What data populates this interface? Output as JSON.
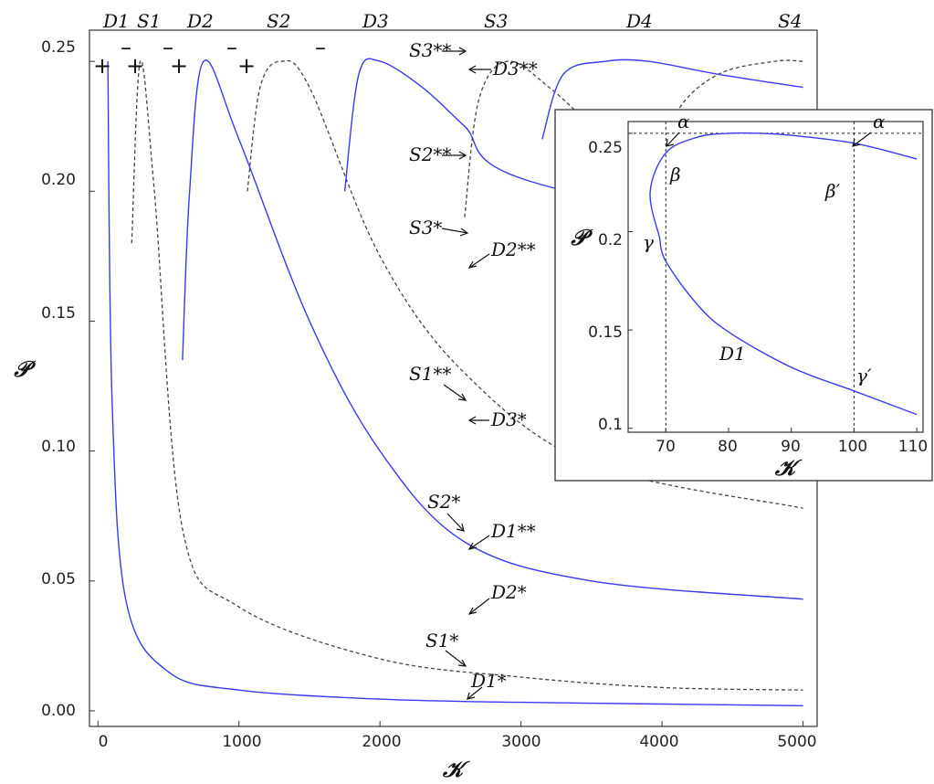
{
  "chart_data": [
    {
      "type": "line",
      "xlabel": "𝒦",
      "ylabel": "𝒫",
      "xlim": [
        -60,
        5100
      ],
      "ylim": [
        -0.006,
        0.262
      ],
      "xticks": [
        "0",
        "1000",
        "2000",
        "3000",
        "4000",
        "5000"
      ],
      "yticks": [
        "0.00",
        "0.05",
        "0.10",
        "0.15",
        "0.20",
        "0.25"
      ],
      "grid": false,
      "series": [
        {
          "name": "D1",
          "style": "solid",
          "color": "#3a3af0",
          "x": [
            70,
            100,
            200,
            500,
            1000,
            2000,
            3000,
            5000
          ],
          "y": [
            0.25,
            0.12,
            0.042,
            0.015,
            0.008,
            0.0045,
            0.0033,
            0.002
          ]
        },
        {
          "name": "S1",
          "style": "dashed",
          "color": "#444444",
          "x": [
            240,
            300,
            400,
            600,
            1000,
            2000,
            3000,
            4000,
            5000
          ],
          "y": [
            0.18,
            0.25,
            0.2,
            0.07,
            0.04,
            0.02,
            0.013,
            0.009,
            0.008
          ]
        },
        {
          "name": "D2",
          "style": "solid",
          "color": "#3a3af0",
          "x": [
            600,
            650,
            750,
            1000,
            1500,
            2000,
            2600,
            3500,
            5000
          ],
          "y": [
            0.135,
            0.2,
            0.25,
            0.22,
            0.15,
            0.1,
            0.065,
            0.05,
            0.043
          ]
        },
        {
          "name": "S2",
          "style": "dashed",
          "color": "#444444",
          "x": [
            1060,
            1150,
            1300,
            1500,
            2000,
            2600,
            3500,
            5000
          ],
          "y": [
            0.2,
            0.24,
            0.25,
            0.24,
            0.175,
            0.13,
            0.095,
            0.078
          ]
        },
        {
          "name": "D3",
          "style": "solid",
          "color": "#3a3af0",
          "x": [
            1750,
            1850,
            2000,
            2300,
            2600,
            3000,
            5000
          ],
          "y": [
            0.2,
            0.245,
            0.25,
            0.24,
            0.225,
            0.205,
            0.18
          ]
        },
        {
          "name": "S3",
          "style": "dashed",
          "color": "#444444",
          "x": [
            2600,
            2700,
            2900,
            3200,
            3600,
            4200
          ],
          "y": [
            0.19,
            0.235,
            0.25,
            0.24,
            0.22,
            0.19
          ]
        },
        {
          "name": "D4",
          "style": "solid",
          "color": "#3a3af0",
          "x": [
            3150,
            3300,
            3600,
            3900,
            4400,
            5000
          ],
          "y": [
            0.22,
            0.245,
            0.25,
            0.25,
            0.245,
            0.24
          ]
        },
        {
          "name": "S4",
          "style": "dashed",
          "color": "#444444",
          "x": [
            3900,
            4100,
            4400,
            4800,
            5000
          ],
          "y": [
            0.2,
            0.23,
            0.245,
            0.25,
            0.25
          ]
        }
      ],
      "annotations": [
        "D1",
        "S1",
        "D2",
        "S2",
        "D3",
        "S3",
        "D4",
        "S4",
        "S3**",
        "D3**",
        "S2**",
        "S3*",
        "D2**",
        "S1**",
        "D3*",
        "S2*",
        "D1**",
        "D2*",
        "S1*",
        "D1*"
      ],
      "signs": [
        "+",
        "+",
        "+",
        "+",
        "–",
        "–",
        "–",
        "–"
      ]
    },
    {
      "type": "line",
      "xlabel": "𝒦",
      "ylabel": "𝒫",
      "xlim": [
        64,
        111
      ],
      "ylim": [
        0.098,
        0.256
      ],
      "xticks": [
        "70",
        "80",
        "90",
        "100",
        "110"
      ],
      "yticks": [
        "0.1",
        "0.15",
        "0.2",
        "0.25"
      ],
      "grid": false,
      "series": [
        {
          "name": "D1",
          "style": "solid",
          "color": "#3a3af0",
          "x": [
            69,
            67.5,
            70,
            75,
            80,
            85,
            90,
            100,
            110
          ],
          "y": [
            0.197,
            0.22,
            0.24,
            0.248,
            0.25,
            0.25,
            0.249,
            0.245,
            0.237
          ],
          "x2": [
            69,
            70,
            75,
            80,
            90,
            100,
            110
          ],
          "y2": [
            0.197,
            0.185,
            0.163,
            0.149,
            0.131,
            0.119,
            0.107
          ]
        }
      ],
      "reference": {
        "y": 0.25,
        "xs": [
          70,
          100
        ]
      },
      "annotations": [
        "α",
        "α",
        "β",
        "β′",
        "γ",
        "γ′",
        "D1"
      ]
    }
  ]
}
